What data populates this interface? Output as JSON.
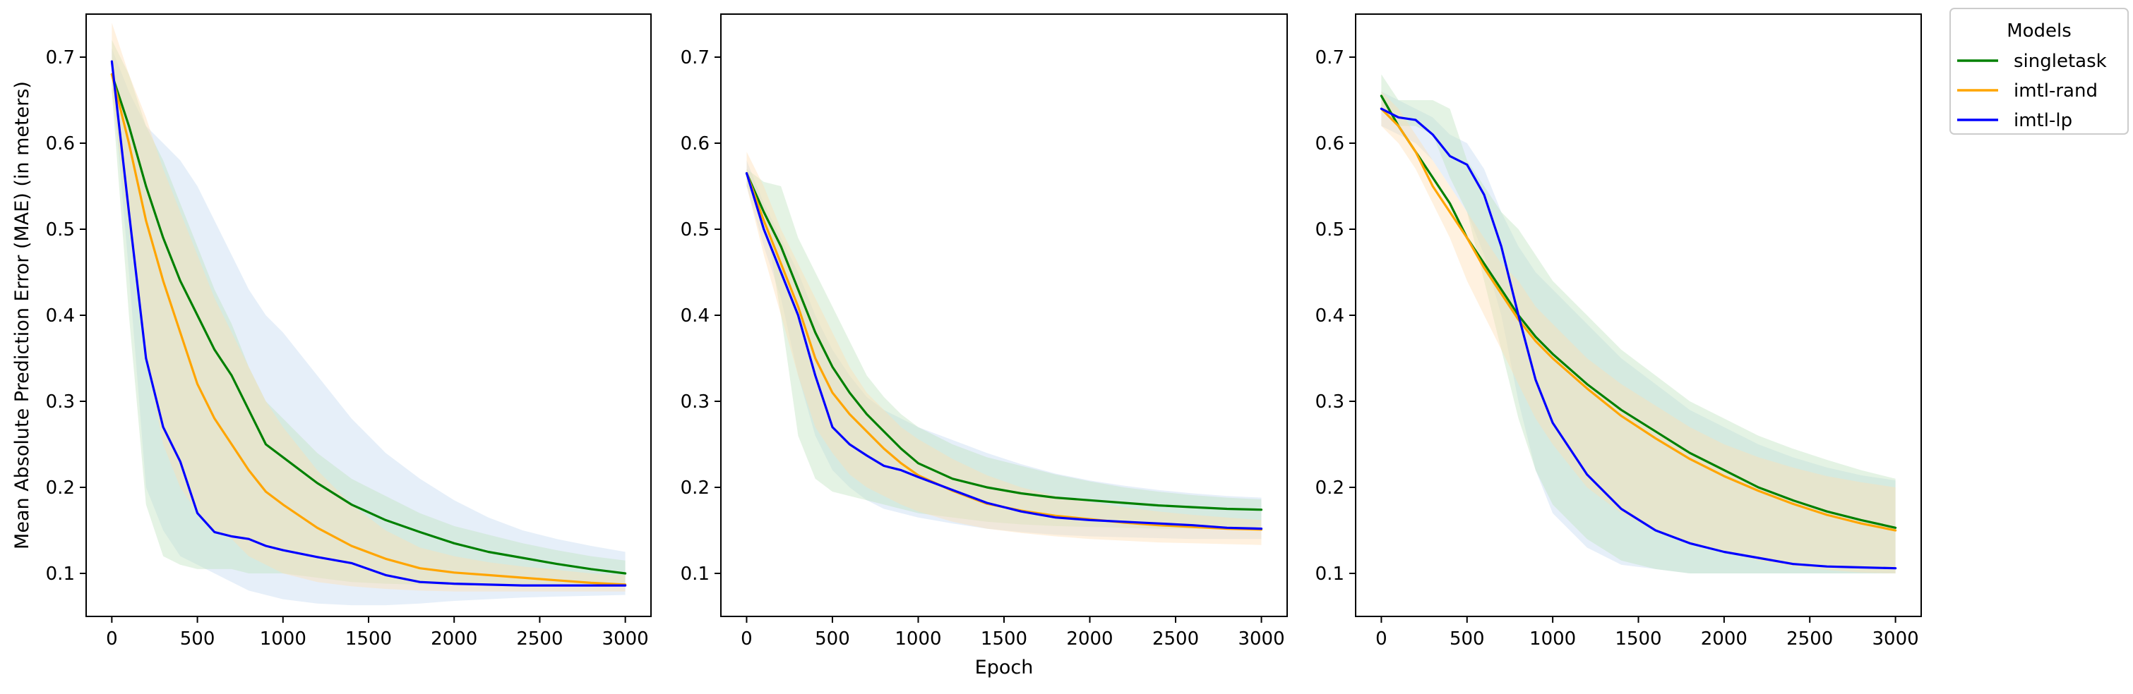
{
  "chart_data": [
    {
      "type": "line",
      "panel": "left",
      "title": "",
      "xlabel": "",
      "ylabel": "Mean Absolute Prediction Error (MAE) (in meters)",
      "xlim": [
        -150,
        3150
      ],
      "ylim": [
        0.05,
        0.75
      ],
      "xticks": [
        0,
        500,
        1000,
        1500,
        2000,
        2500,
        3000
      ],
      "yticks": [
        0.1,
        0.2,
        0.3,
        0.4,
        0.5,
        0.6,
        0.7
      ],
      "x": [
        0,
        100,
        200,
        300,
        400,
        500,
        600,
        700,
        800,
        900,
        1000,
        1200,
        1400,
        1600,
        1800,
        2000,
        2200,
        2400,
        2600,
        2800,
        3000
      ],
      "series": [
        {
          "name": "singletask",
          "color": "#008000",
          "values": [
            0.68,
            0.62,
            0.55,
            0.49,
            0.44,
            0.4,
            0.36,
            0.33,
            0.29,
            0.25,
            0.235,
            0.205,
            0.18,
            0.162,
            0.148,
            0.135,
            0.125,
            0.118,
            0.111,
            0.105,
            0.1
          ],
          "lower": [
            0.66,
            0.4,
            0.18,
            0.12,
            0.11,
            0.105,
            0.105,
            0.105,
            0.1,
            0.1,
            0.1,
            0.095,
            0.09,
            0.088,
            0.087,
            0.086,
            0.086,
            0.085,
            0.085,
            0.085,
            0.085
          ],
          "upper": [
            0.72,
            0.68,
            0.62,
            0.58,
            0.53,
            0.48,
            0.43,
            0.39,
            0.34,
            0.3,
            0.28,
            0.24,
            0.21,
            0.19,
            0.17,
            0.155,
            0.145,
            0.135,
            0.127,
            0.12,
            0.115
          ]
        },
        {
          "name": "imtl-rand",
          "color": "#FFA500",
          "values": [
            0.68,
            0.6,
            0.51,
            0.44,
            0.38,
            0.32,
            0.28,
            0.25,
            0.22,
            0.195,
            0.18,
            0.153,
            0.132,
            0.117,
            0.106,
            0.101,
            0.098,
            0.095,
            0.092,
            0.089,
            0.087
          ],
          "lower": [
            0.66,
            0.5,
            0.35,
            0.25,
            0.2,
            0.17,
            0.15,
            0.14,
            0.12,
            0.11,
            0.1,
            0.09,
            0.085,
            0.082,
            0.08,
            0.079,
            0.079,
            0.079,
            0.079,
            0.079,
            0.079
          ],
          "upper": [
            0.74,
            0.68,
            0.63,
            0.57,
            0.52,
            0.47,
            0.42,
            0.38,
            0.34,
            0.3,
            0.27,
            0.22,
            0.18,
            0.15,
            0.13,
            0.12,
            0.113,
            0.108,
            0.104,
            0.1,
            0.098
          ]
        },
        {
          "name": "imtl-lp",
          "color": "#0000FF",
          "values": [
            0.695,
            0.52,
            0.35,
            0.27,
            0.23,
            0.17,
            0.148,
            0.143,
            0.14,
            0.132,
            0.127,
            0.119,
            0.112,
            0.098,
            0.09,
            0.088,
            0.087,
            0.086,
            0.086,
            0.086,
            0.086
          ],
          "lower": [
            0.68,
            0.45,
            0.2,
            0.15,
            0.12,
            0.11,
            0.1,
            0.09,
            0.08,
            0.075,
            0.07,
            0.065,
            0.063,
            0.063,
            0.065,
            0.068,
            0.07,
            0.072,
            0.073,
            0.074,
            0.075
          ],
          "upper": [
            0.71,
            0.66,
            0.62,
            0.6,
            0.58,
            0.55,
            0.51,
            0.47,
            0.43,
            0.4,
            0.38,
            0.33,
            0.28,
            0.24,
            0.21,
            0.185,
            0.165,
            0.15,
            0.14,
            0.132,
            0.125
          ]
        }
      ]
    },
    {
      "type": "line",
      "panel": "middle",
      "title": "",
      "xlabel": "Epoch",
      "ylabel": "",
      "xlim": [
        -150,
        3150
      ],
      "ylim": [
        0.05,
        0.75
      ],
      "xticks": [
        0,
        500,
        1000,
        1500,
        2000,
        2500,
        3000
      ],
      "yticks": [
        0.1,
        0.2,
        0.3,
        0.4,
        0.5,
        0.6,
        0.7
      ],
      "x": [
        0,
        100,
        200,
        300,
        400,
        500,
        600,
        700,
        800,
        900,
        1000,
        1200,
        1400,
        1600,
        1800,
        2000,
        2200,
        2400,
        2600,
        2800,
        3000
      ],
      "series": [
        {
          "name": "singletask",
          "color": "#008000",
          "values": [
            0.565,
            0.52,
            0.48,
            0.43,
            0.38,
            0.34,
            0.31,
            0.285,
            0.265,
            0.245,
            0.228,
            0.21,
            0.2,
            0.193,
            0.188,
            0.185,
            0.182,
            0.179,
            0.177,
            0.175,
            0.174
          ],
          "lower": [
            0.55,
            0.52,
            0.4,
            0.26,
            0.21,
            0.195,
            0.19,
            0.185,
            0.18,
            0.175,
            0.17,
            0.165,
            0.16,
            0.157,
            0.155,
            0.154,
            0.153,
            0.152,
            0.152,
            0.152,
            0.152
          ],
          "upper": [
            0.57,
            0.555,
            0.55,
            0.49,
            0.45,
            0.41,
            0.37,
            0.33,
            0.305,
            0.285,
            0.27,
            0.25,
            0.235,
            0.225,
            0.215,
            0.207,
            0.2,
            0.195,
            0.191,
            0.188,
            0.186
          ]
        },
        {
          "name": "imtl-rand",
          "color": "#FFA500",
          "values": [
            0.565,
            0.51,
            0.46,
            0.41,
            0.35,
            0.31,
            0.285,
            0.265,
            0.245,
            0.228,
            0.214,
            0.196,
            0.181,
            0.173,
            0.167,
            0.163,
            0.159,
            0.156,
            0.154,
            0.152,
            0.151
          ],
          "lower": [
            0.55,
            0.47,
            0.4,
            0.33,
            0.27,
            0.24,
            0.215,
            0.2,
            0.19,
            0.18,
            0.172,
            0.16,
            0.152,
            0.147,
            0.143,
            0.14,
            0.138,
            0.136,
            0.135,
            0.134,
            0.133
          ],
          "upper": [
            0.59,
            0.55,
            0.5,
            0.46,
            0.42,
            0.38,
            0.34,
            0.31,
            0.29,
            0.27,
            0.256,
            0.233,
            0.214,
            0.2,
            0.19,
            0.183,
            0.177,
            0.172,
            0.168,
            0.165,
            0.162
          ]
        },
        {
          "name": "imtl-lp",
          "color": "#0000FF",
          "values": [
            0.565,
            0.5,
            0.45,
            0.4,
            0.33,
            0.27,
            0.25,
            0.237,
            0.225,
            0.22,
            0.212,
            0.197,
            0.182,
            0.172,
            0.165,
            0.162,
            0.16,
            0.158,
            0.156,
            0.153,
            0.152
          ],
          "lower": [
            0.55,
            0.48,
            0.42,
            0.33,
            0.26,
            0.22,
            0.2,
            0.185,
            0.175,
            0.17,
            0.165,
            0.158,
            0.152,
            0.148,
            0.145,
            0.143,
            0.142,
            0.141,
            0.14,
            0.14,
            0.14
          ],
          "upper": [
            0.58,
            0.53,
            0.49,
            0.45,
            0.4,
            0.36,
            0.33,
            0.305,
            0.29,
            0.28,
            0.27,
            0.255,
            0.24,
            0.227,
            0.216,
            0.208,
            0.202,
            0.197,
            0.193,
            0.19,
            0.188
          ]
        }
      ]
    },
    {
      "type": "line",
      "panel": "right",
      "title": "",
      "xlabel": "",
      "ylabel": "",
      "xlim": [
        -150,
        3150
      ],
      "ylim": [
        0.05,
        0.75
      ],
      "xticks": [
        0,
        500,
        1000,
        1500,
        2000,
        2500,
        3000
      ],
      "yticks": [
        0.1,
        0.2,
        0.3,
        0.4,
        0.5,
        0.6,
        0.7
      ],
      "x": [
        0,
        100,
        200,
        300,
        400,
        500,
        600,
        700,
        800,
        900,
        1000,
        1200,
        1400,
        1600,
        1800,
        2000,
        2200,
        2400,
        2600,
        2800,
        3000
      ],
      "series": [
        {
          "name": "singletask",
          "color": "#008000",
          "values": [
            0.655,
            0.62,
            0.59,
            0.56,
            0.53,
            0.49,
            0.46,
            0.43,
            0.4,
            0.375,
            0.355,
            0.32,
            0.29,
            0.265,
            0.24,
            0.22,
            0.2,
            0.185,
            0.172,
            0.162,
            0.153
          ],
          "lower": [
            0.64,
            0.62,
            0.62,
            0.61,
            0.56,
            0.52,
            0.44,
            0.36,
            0.28,
            0.22,
            0.18,
            0.14,
            0.115,
            0.105,
            0.1,
            0.1,
            0.1,
            0.1,
            0.1,
            0.1,
            0.1
          ],
          "upper": [
            0.68,
            0.65,
            0.65,
            0.65,
            0.64,
            0.58,
            0.55,
            0.52,
            0.5,
            0.47,
            0.44,
            0.4,
            0.36,
            0.33,
            0.3,
            0.28,
            0.26,
            0.245,
            0.232,
            0.22,
            0.21
          ]
        },
        {
          "name": "imtl-rand",
          "color": "#FFA500",
          "values": [
            0.64,
            0.62,
            0.59,
            0.55,
            0.52,
            0.49,
            0.455,
            0.425,
            0.395,
            0.37,
            0.35,
            0.315,
            0.283,
            0.257,
            0.233,
            0.213,
            0.196,
            0.181,
            0.168,
            0.158,
            0.15
          ],
          "lower": [
            0.62,
            0.6,
            0.57,
            0.53,
            0.49,
            0.44,
            0.4,
            0.36,
            0.32,
            0.28,
            0.25,
            0.2,
            0.17,
            0.15,
            0.135,
            0.125,
            0.115,
            0.108,
            0.104,
            0.101,
            0.1
          ],
          "upper": [
            0.66,
            0.64,
            0.61,
            0.58,
            0.55,
            0.52,
            0.49,
            0.46,
            0.44,
            0.41,
            0.39,
            0.35,
            0.32,
            0.295,
            0.27,
            0.25,
            0.235,
            0.223,
            0.213,
            0.206,
            0.2
          ]
        },
        {
          "name": "imtl-lp",
          "color": "#0000FF",
          "values": [
            0.64,
            0.63,
            0.627,
            0.61,
            0.585,
            0.575,
            0.54,
            0.48,
            0.4,
            0.325,
            0.275,
            0.215,
            0.175,
            0.15,
            0.135,
            0.125,
            0.118,
            0.111,
            0.108,
            0.107,
            0.106
          ],
          "lower": [
            0.62,
            0.61,
            0.6,
            0.58,
            0.55,
            0.52,
            0.47,
            0.4,
            0.3,
            0.22,
            0.17,
            0.13,
            0.11,
            0.105,
            0.1,
            0.1,
            0.1,
            0.1,
            0.1,
            0.1,
            0.1
          ],
          "upper": [
            0.66,
            0.65,
            0.64,
            0.63,
            0.61,
            0.6,
            0.57,
            0.52,
            0.48,
            0.45,
            0.43,
            0.39,
            0.35,
            0.32,
            0.29,
            0.27,
            0.25,
            0.235,
            0.223,
            0.214,
            0.208
          ]
        }
      ]
    }
  ],
  "legend": {
    "title": "Models",
    "placement": "outside-top-right",
    "items": [
      {
        "label": "singletask",
        "color": "#008000"
      },
      {
        "label": "imtl-rand",
        "color": "#FFA500"
      },
      {
        "label": "imtl-lp",
        "color": "#0000FF"
      }
    ]
  },
  "band_colors": {
    "singletask": "#BFE3BF",
    "imtl-rand": "#FFDDB3",
    "imtl-lp": "#C4D9F0"
  }
}
